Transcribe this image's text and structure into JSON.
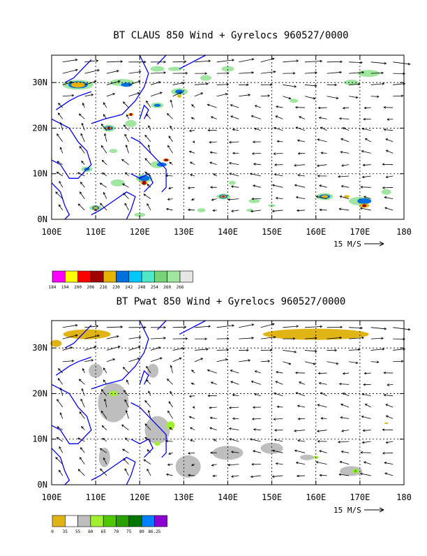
{
  "chart_data": [
    {
      "type": "heatmap",
      "title": "BT CLAUS 850 Wind + Gyrelocs 960527/0000",
      "x_ticks": [
        "100E",
        "110E",
        "120E",
        "130E",
        "140E",
        "150E",
        "160E",
        "170E",
        "180"
      ],
      "x_values": [
        100,
        110,
        120,
        130,
        140,
        150,
        160,
        170,
        180
      ],
      "y_ticks": [
        "0N",
        "10N",
        "20N",
        "30N"
      ],
      "y_values": [
        0,
        10,
        20,
        30
      ],
      "xlim": [
        100,
        180
      ],
      "ylim": [
        0,
        36
      ],
      "grid": true,
      "vector_reference": "15 M/S",
      "colorbar": {
        "labels": [
          "184",
          "194",
          "200",
          "206",
          "216",
          "230",
          "242",
          "248",
          "254",
          "260",
          "266"
        ],
        "colors": [
          "#ff00ff",
          "#ffff00",
          "#ff0000",
          "#a00000",
          "#e6b400",
          "#0070e0",
          "#00c8ff",
          "#50e6c8",
          "#78d278",
          "#a0e6a0",
          "#e6e6e6"
        ]
      }
    },
    {
      "type": "heatmap",
      "title": "BT Pwat 850 Wind + Gyrelocs 960527/0000",
      "x_ticks": [
        "100E",
        "110E",
        "120E",
        "130E",
        "140E",
        "150E",
        "160E",
        "170E",
        "180"
      ],
      "x_values": [
        100,
        110,
        120,
        130,
        140,
        150,
        160,
        170,
        180
      ],
      "y_ticks": [
        "0N",
        "10N",
        "20N",
        "30N"
      ],
      "y_values": [
        0,
        10,
        20,
        30
      ],
      "xlim": [
        100,
        180
      ],
      "ylim": [
        0,
        36
      ],
      "grid": true,
      "vector_reference": "15 M/S",
      "colorbar": {
        "labels": [
          "0",
          "35",
          "55",
          "60",
          "65",
          "70",
          "75",
          "80",
          "86.25"
        ],
        "colors": [
          "#e0b414",
          "#ffffff",
          "#bebebe",
          "#a0f030",
          "#50c800",
          "#28a000",
          "#007800",
          "#0080ff",
          "#8c00d2"
        ]
      }
    }
  ]
}
